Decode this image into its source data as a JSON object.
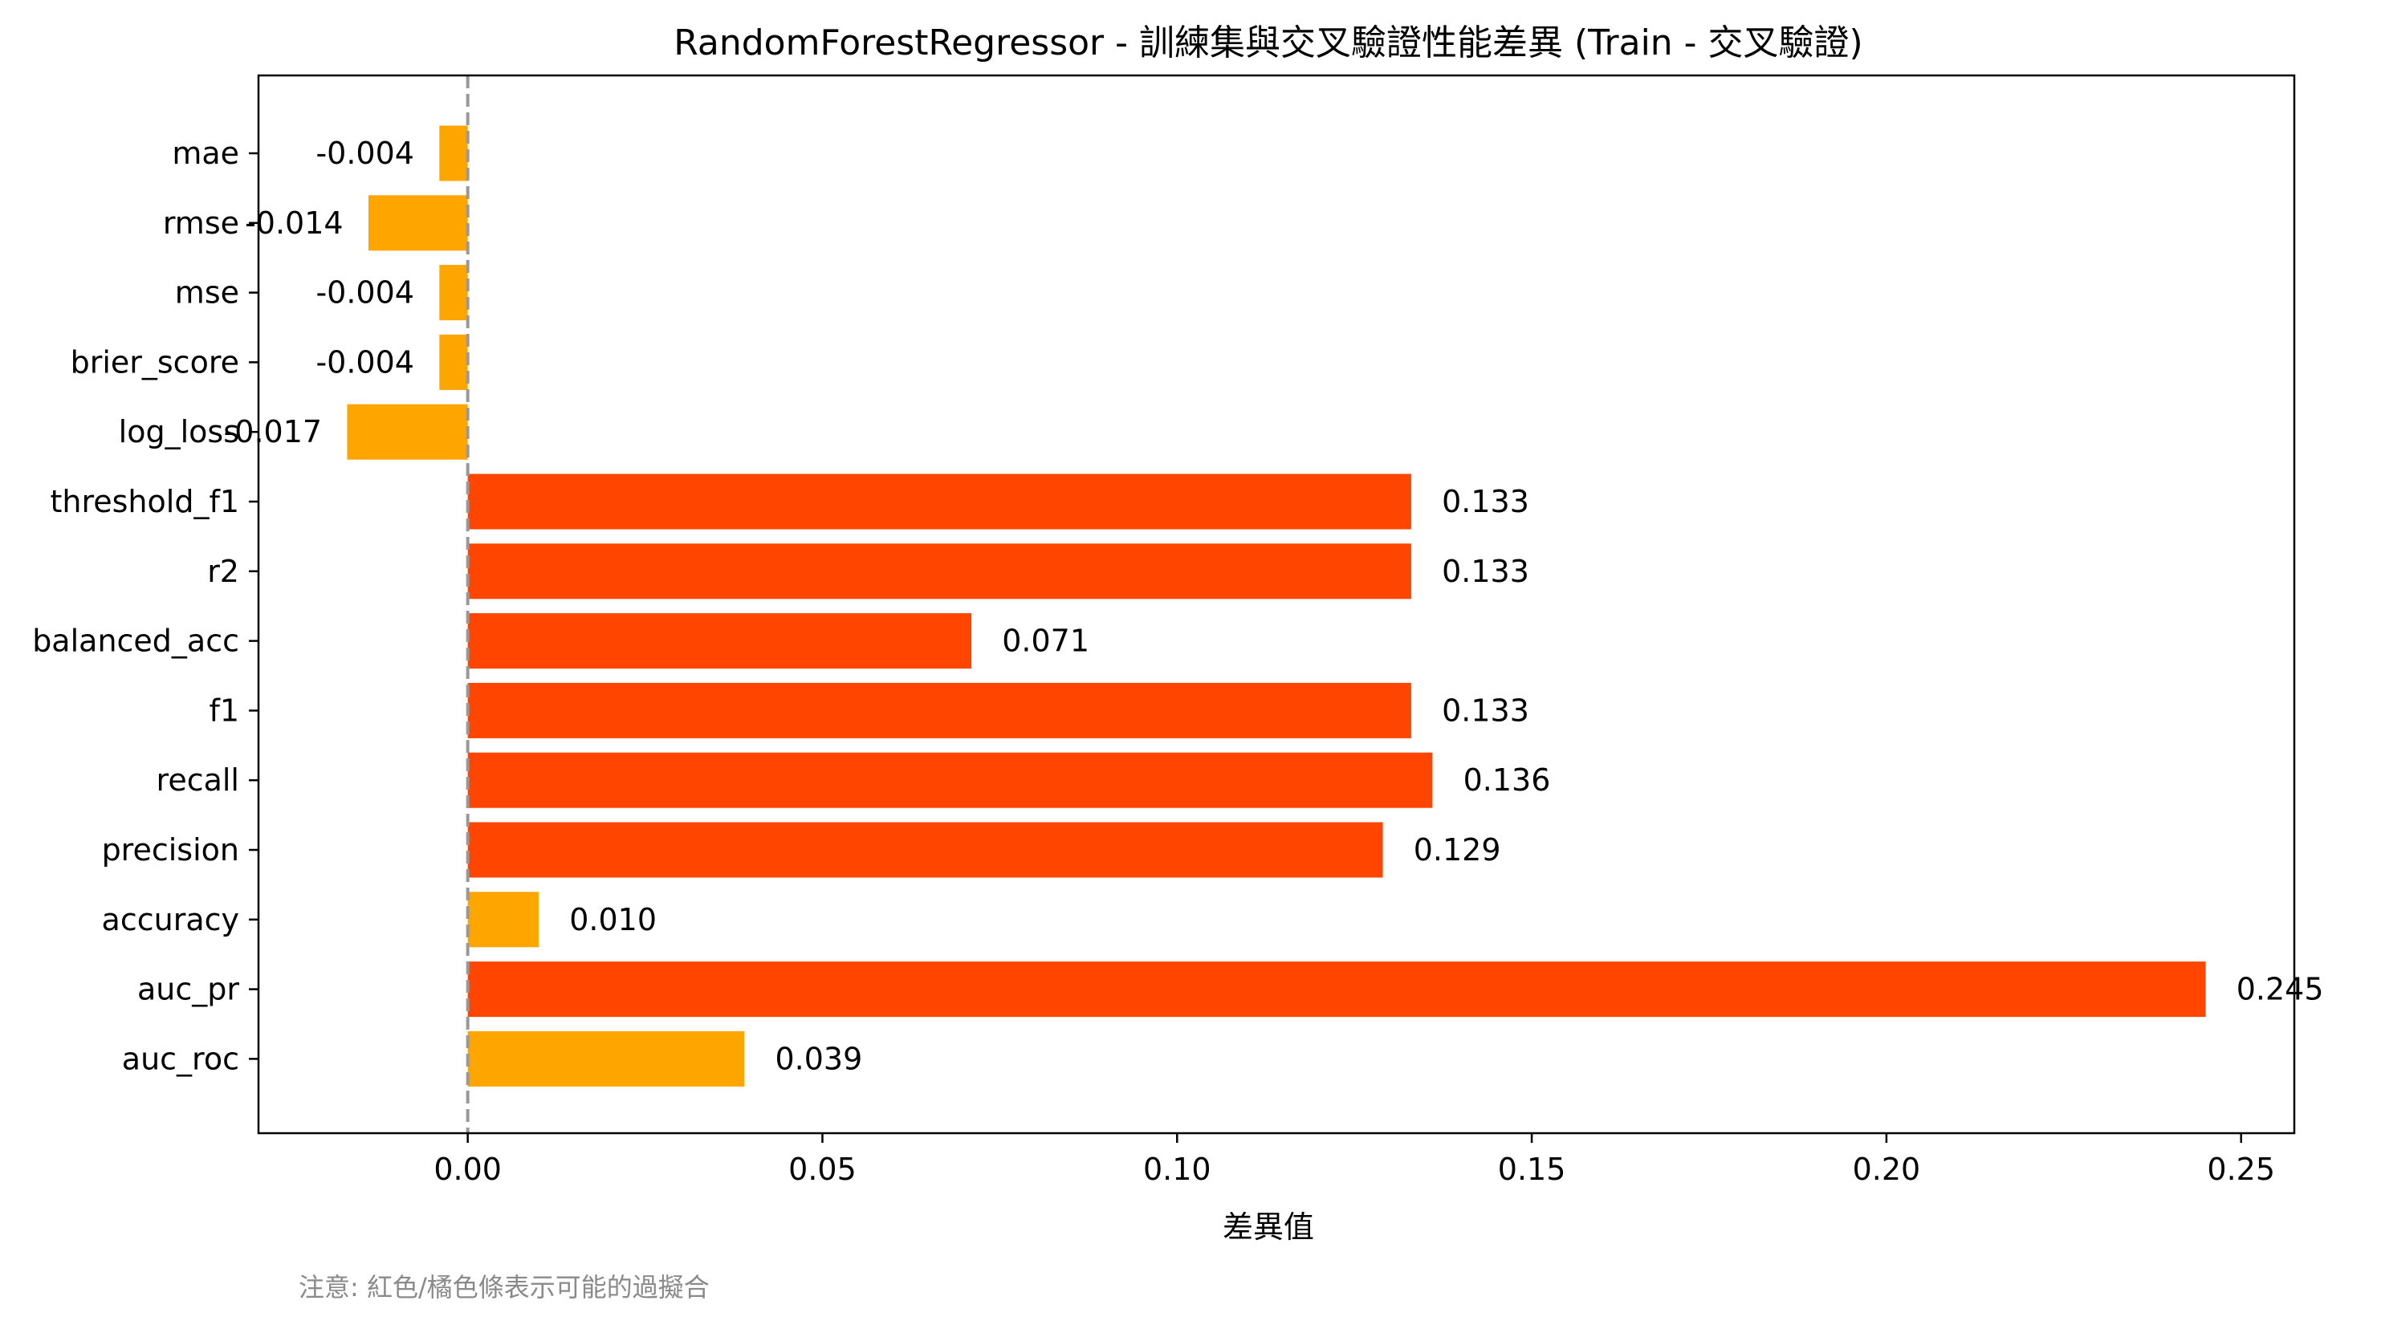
{
  "chart_data": {
    "type": "bar",
    "orientation": "horizontal",
    "title": "RandomForestRegressor - 訓練集與交叉驗證性能差異 (Train - 交叉驗證)",
    "xlabel": "差異值",
    "ylabel": "",
    "xlim": [
      -0.0295,
      0.2575
    ],
    "xticks": [
      0.0,
      0.05,
      0.1,
      0.15,
      0.2,
      0.25
    ],
    "xtick_labels": [
      "0.00",
      "0.05",
      "0.10",
      "0.15",
      "0.20",
      "0.25"
    ],
    "grid": false,
    "reference_line": {
      "x": 0,
      "style": "dashed",
      "color": "#999999"
    },
    "categories": [
      "mae",
      "rmse",
      "mse",
      "brier_score",
      "log_loss",
      "threshold_f1",
      "r2",
      "balanced_acc",
      "f1",
      "recall",
      "precision",
      "accuracy",
      "auc_pr",
      "auc_roc"
    ],
    "values": [
      -0.004,
      -0.014,
      -0.004,
      -0.004,
      -0.017,
      0.133,
      0.133,
      0.071,
      0.133,
      0.136,
      0.129,
      0.01,
      0.245,
      0.039
    ],
    "value_labels": [
      "-0.004",
      "-0.014",
      "-0.004",
      "-0.004",
      "-0.017",
      "0.133",
      "0.133",
      "0.071",
      "0.133",
      "0.136",
      "0.129",
      "0.010",
      "0.245",
      "0.039"
    ],
    "bar_colors": [
      "#FFA500",
      "#FFA500",
      "#FFA500",
      "#FFA500",
      "#FFA500",
      "#FF4500",
      "#FF4500",
      "#FF4500",
      "#FF4500",
      "#FF4500",
      "#FF4500",
      "#FFA500",
      "#FF4500",
      "#FFA500"
    ]
  },
  "note": "注意: 紅色/橘色條表示可能的過擬合"
}
